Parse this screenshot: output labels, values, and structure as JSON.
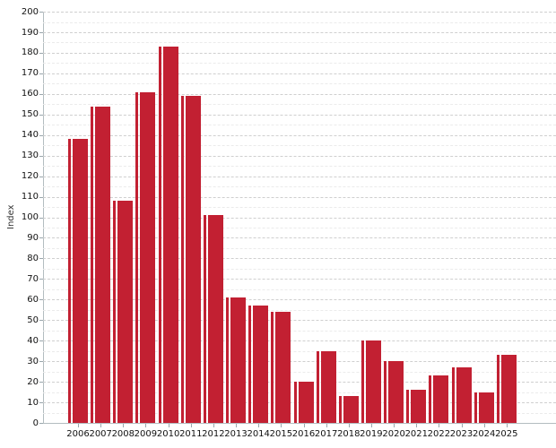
{
  "chart_data": {
    "type": "bar",
    "title": "",
    "xlabel": "",
    "ylabel": "Index",
    "ylim": [
      0,
      200
    ],
    "y_major_step": 10,
    "y_minor_step": 5,
    "grid": "on",
    "legend_position": "none",
    "categories": [
      "2006",
      "2007",
      "2008",
      "2009",
      "2010",
      "2011",
      "2012",
      "2013",
      "2014",
      "2015",
      "2016",
      "2017",
      "2018",
      "2019",
      "2020",
      "2021",
      "2022",
      "2023",
      "2024",
      "2025"
    ],
    "values": [
      138,
      154,
      108,
      161,
      183,
      159,
      101,
      61,
      57,
      54,
      20,
      35,
      13,
      40,
      30,
      16,
      23,
      27,
      15,
      33
    ],
    "bar_color": "#c22032",
    "grid_major_color": "#cfcfcf",
    "grid_minor_color": "#ebebeb",
    "axis_color": "#b3bcc0",
    "tick_label_color": "#111111"
  }
}
